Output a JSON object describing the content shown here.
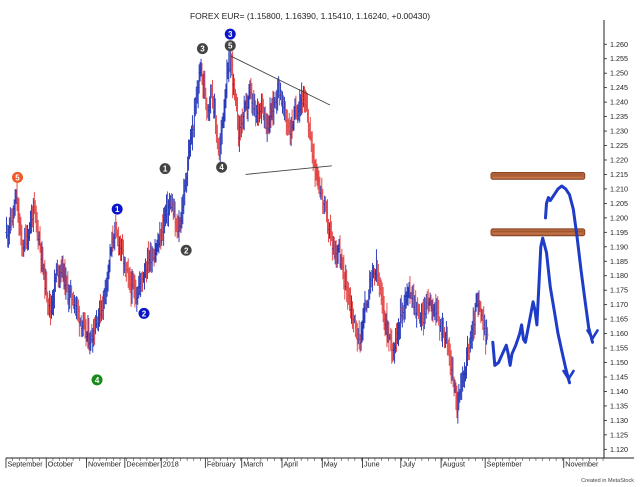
{
  "chart_data": {
    "type": "bar",
    "title": "FOREX EUR= (1.15800, 1.16390, 1.15410, 1.16240, +0.00430)",
    "footer": "Created in MetaStock",
    "ylim": [
      1.117,
      1.267
    ],
    "y_ticks": [
      "1.260",
      "1.255",
      "1.250",
      "1.245",
      "1.240",
      "1.235",
      "1.230",
      "1.225",
      "1.220",
      "1.215",
      "1.210",
      "1.205",
      "1.200",
      "1.195",
      "1.190",
      "1.185",
      "1.180",
      "1.175",
      "1.170",
      "1.165",
      "1.160",
      "1.155",
      "1.150",
      "1.145",
      "1.140",
      "1.135",
      "1.130",
      "1.125",
      "1.120"
    ],
    "x_months": [
      {
        "label": "September",
        "t": 0
      },
      {
        "label": "October",
        "t": 42
      },
      {
        "label": "November",
        "t": 84
      },
      {
        "label": "December",
        "t": 124
      },
      {
        "label": "2018",
        "t": 162
      },
      {
        "label": "February",
        "t": 208
      },
      {
        "label": "March",
        "t": 246
      },
      {
        "label": "April",
        "t": 288
      },
      {
        "label": "May",
        "t": 330
      },
      {
        "label": "June",
        "t": 372
      },
      {
        "label": "July",
        "t": 412
      },
      {
        "label": "August",
        "t": 454
      },
      {
        "label": "September",
        "t": 500
      },
      {
        "label": "November",
        "t": 582
      }
    ],
    "t_range": [
      0,
      624
    ],
    "price_path": [
      {
        "t": 0,
        "v": 1.195
      },
      {
        "t": 6,
        "v": 1.2
      },
      {
        "t": 10,
        "v": 1.207
      },
      {
        "t": 16,
        "v": 1.19
      },
      {
        "t": 22,
        "v": 1.194
      },
      {
        "t": 28,
        "v": 1.203
      },
      {
        "t": 34,
        "v": 1.193
      },
      {
        "t": 40,
        "v": 1.178
      },
      {
        "t": 46,
        "v": 1.168
      },
      {
        "t": 52,
        "v": 1.181
      },
      {
        "t": 58,
        "v": 1.183
      },
      {
        "t": 64,
        "v": 1.174
      },
      {
        "t": 70,
        "v": 1.172
      },
      {
        "t": 76,
        "v": 1.166
      },
      {
        "t": 82,
        "v": 1.16
      },
      {
        "t": 88,
        "v": 1.158
      },
      {
        "t": 94,
        "v": 1.165
      },
      {
        "t": 100,
        "v": 1.17
      },
      {
        "t": 106,
        "v": 1.182
      },
      {
        "t": 112,
        "v": 1.195
      },
      {
        "t": 118,
        "v": 1.192
      },
      {
        "t": 124,
        "v": 1.182
      },
      {
        "t": 130,
        "v": 1.176
      },
      {
        "t": 136,
        "v": 1.174
      },
      {
        "t": 142,
        "v": 1.18
      },
      {
        "t": 148,
        "v": 1.186
      },
      {
        "t": 154,
        "v": 1.188
      },
      {
        "t": 160,
        "v": 1.192
      },
      {
        "t": 166,
        "v": 1.202
      },
      {
        "t": 172,
        "v": 1.205
      },
      {
        "t": 178,
        "v": 1.195
      },
      {
        "t": 182,
        "v": 1.2
      },
      {
        "t": 186,
        "v": 1.21
      },
      {
        "t": 190,
        "v": 1.222
      },
      {
        "t": 194,
        "v": 1.23
      },
      {
        "t": 198,
        "v": 1.24
      },
      {
        "t": 202,
        "v": 1.252
      },
      {
        "t": 206,
        "v": 1.245
      },
      {
        "t": 210,
        "v": 1.238
      },
      {
        "t": 214,
        "v": 1.245
      },
      {
        "t": 218,
        "v": 1.233
      },
      {
        "t": 222,
        "v": 1.221
      },
      {
        "t": 226,
        "v": 1.236
      },
      {
        "t": 230,
        "v": 1.248
      },
      {
        "t": 234,
        "v": 1.255
      },
      {
        "t": 238,
        "v": 1.242
      },
      {
        "t": 242,
        "v": 1.23
      },
      {
        "t": 248,
        "v": 1.236
      },
      {
        "t": 254,
        "v": 1.243
      },
      {
        "t": 260,
        "v": 1.235
      },
      {
        "t": 266,
        "v": 1.24
      },
      {
        "t": 272,
        "v": 1.232
      },
      {
        "t": 278,
        "v": 1.238
      },
      {
        "t": 284,
        "v": 1.246
      },
      {
        "t": 290,
        "v": 1.236
      },
      {
        "t": 296,
        "v": 1.23
      },
      {
        "t": 302,
        "v": 1.237
      },
      {
        "t": 308,
        "v": 1.242
      },
      {
        "t": 314,
        "v": 1.236
      },
      {
        "t": 318,
        "v": 1.225
      },
      {
        "t": 322,
        "v": 1.218
      },
      {
        "t": 326,
        "v": 1.212
      },
      {
        "t": 330,
        "v": 1.206
      },
      {
        "t": 334,
        "v": 1.2
      },
      {
        "t": 338,
        "v": 1.194
      },
      {
        "t": 342,
        "v": 1.188
      },
      {
        "t": 346,
        "v": 1.19
      },
      {
        "t": 350,
        "v": 1.182
      },
      {
        "t": 356,
        "v": 1.175
      },
      {
        "t": 362,
        "v": 1.165
      },
      {
        "t": 368,
        "v": 1.157
      },
      {
        "t": 374,
        "v": 1.168
      },
      {
        "t": 380,
        "v": 1.178
      },
      {
        "t": 386,
        "v": 1.182
      },
      {
        "t": 392,
        "v": 1.17
      },
      {
        "t": 398,
        "v": 1.16
      },
      {
        "t": 404,
        "v": 1.155
      },
      {
        "t": 410,
        "v": 1.165
      },
      {
        "t": 416,
        "v": 1.172
      },
      {
        "t": 422,
        "v": 1.175
      },
      {
        "t": 428,
        "v": 1.168
      },
      {
        "t": 434,
        "v": 1.165
      },
      {
        "t": 440,
        "v": 1.172
      },
      {
        "t": 446,
        "v": 1.17
      },
      {
        "t": 452,
        "v": 1.163
      },
      {
        "t": 458,
        "v": 1.16
      },
      {
        "t": 462,
        "v": 1.152
      },
      {
        "t": 466,
        "v": 1.145
      },
      {
        "t": 470,
        "v": 1.135
      },
      {
        "t": 474,
        "v": 1.14
      },
      {
        "t": 478,
        "v": 1.148
      },
      {
        "t": 482,
        "v": 1.155
      },
      {
        "t": 486,
        "v": 1.16
      },
      {
        "t": 490,
        "v": 1.17
      },
      {
        "t": 494,
        "v": 1.168
      },
      {
        "t": 498,
        "v": 1.162
      },
      {
        "t": 502,
        "v": 1.158
      }
    ],
    "triangle": {
      "upper": [
        {
          "t": 234,
          "v": 1.256
        },
        {
          "t": 338,
          "v": 1.239
        }
      ],
      "lower": [
        {
          "t": 250,
          "v": 1.215
        },
        {
          "t": 340,
          "v": 1.218
        }
      ]
    },
    "resistance_zones": [
      {
        "t0": 506,
        "t1": 604,
        "v": 1.2145
      },
      {
        "t0": 506,
        "t1": 604,
        "v": 1.195
      }
    ],
    "annotation_paths": [
      [
        {
          "t": 508,
          "v": 1.157
        },
        {
          "t": 510,
          "v": 1.149
        },
        {
          "t": 514,
          "v": 1.15
        },
        {
          "t": 518,
          "v": 1.153
        },
        {
          "t": 522,
          "v": 1.156
        },
        {
          "t": 524,
          "v": 1.153
        },
        {
          "t": 526,
          "v": 1.149
        },
        {
          "t": 528,
          "v": 1.153
        },
        {
          "t": 532,
          "v": 1.156
        },
        {
          "t": 536,
          "v": 1.16
        },
        {
          "t": 538,
          "v": 1.163
        },
        {
          "t": 540,
          "v": 1.158
        },
        {
          "t": 542,
          "v": 1.157
        },
        {
          "t": 546,
          "v": 1.164
        },
        {
          "t": 550,
          "v": 1.171
        },
        {
          "t": 552,
          "v": 1.168
        },
        {
          "t": 554,
          "v": 1.163
        },
        {
          "t": 556,
          "v": 1.176
        },
        {
          "t": 558,
          "v": 1.19
        },
        {
          "t": 560,
          "v": 1.193
        },
        {
          "t": 564,
          "v": 1.188
        },
        {
          "t": 568,
          "v": 1.176
        },
        {
          "t": 572,
          "v": 1.168
        },
        {
          "t": 576,
          "v": 1.16
        },
        {
          "t": 580,
          "v": 1.154
        },
        {
          "t": 584,
          "v": 1.148
        },
        {
          "t": 588,
          "v": 1.143
        }
      ],
      [
        {
          "t": 563,
          "v": 1.2
        },
        {
          "t": 564,
          "v": 1.205
        },
        {
          "t": 566,
          "v": 1.207
        },
        {
          "t": 568,
          "v": 1.206
        },
        {
          "t": 572,
          "v": 1.208
        },
        {
          "t": 576,
          "v": 1.21
        },
        {
          "t": 580,
          "v": 1.211
        },
        {
          "t": 584,
          "v": 1.21
        },
        {
          "t": 588,
          "v": 1.208
        },
        {
          "t": 592,
          "v": 1.203
        },
        {
          "t": 596,
          "v": 1.193
        },
        {
          "t": 600,
          "v": 1.182
        },
        {
          "t": 604,
          "v": 1.172
        },
        {
          "t": 608,
          "v": 1.162
        },
        {
          "t": 612,
          "v": 1.157
        }
      ]
    ],
    "arrowheads": [
      {
        "t": 587,
        "v": 1.145
      },
      {
        "t": 612,
        "v": 1.159
      }
    ],
    "wave_labels": [
      {
        "label": "1",
        "t": 116,
        "v": 1.203,
        "color": "#0a14c8"
      },
      {
        "label": "2",
        "t": 144,
        "v": 1.167,
        "color": "#0a14c8"
      },
      {
        "label": "3",
        "t": 234,
        "v": 1.2635,
        "color": "#0a14c8"
      },
      {
        "label": "1",
        "t": 166,
        "v": 1.217,
        "color": "#444444"
      },
      {
        "label": "2",
        "t": 188,
        "v": 1.1888,
        "color": "#444444"
      },
      {
        "label": "3",
        "t": 205,
        "v": 1.2585,
        "color": "#444444"
      },
      {
        "label": "4",
        "t": 225,
        "v": 1.2175,
        "color": "#444444"
      },
      {
        "label": "5",
        "t": 234,
        "v": 1.2595,
        "color": "#444444"
      },
      {
        "label": "5",
        "t": 12,
        "v": 1.214,
        "color": "#f05a28"
      },
      {
        "label": "4",
        "t": 95,
        "v": 1.144,
        "color": "#1a8a1a"
      }
    ],
    "colors": {
      "up_bar": "#1a2db4",
      "down_bar": "#e23b3b",
      "annotation": "#1e3cc8",
      "zone_fill": "#b5643c",
      "zone_edge": "#7a3a1a",
      "triangle": "#444444",
      "axis": "#222222"
    }
  }
}
